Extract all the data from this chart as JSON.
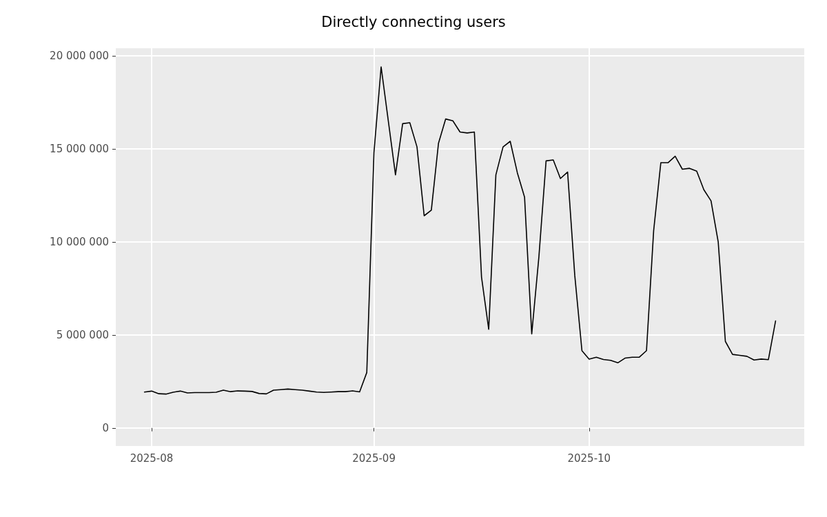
{
  "chart_data": {
    "type": "line",
    "title": "Directly connecting users",
    "x": [
      "2025-07-31",
      "2025-08-01",
      "2025-08-02",
      "2025-08-03",
      "2025-08-04",
      "2025-08-05",
      "2025-08-06",
      "2025-08-07",
      "2025-08-08",
      "2025-08-09",
      "2025-08-10",
      "2025-08-11",
      "2025-08-12",
      "2025-08-13",
      "2025-08-14",
      "2025-08-15",
      "2025-08-16",
      "2025-08-17",
      "2025-08-18",
      "2025-08-19",
      "2025-08-20",
      "2025-08-21",
      "2025-08-22",
      "2025-08-23",
      "2025-08-24",
      "2025-08-25",
      "2025-08-26",
      "2025-08-27",
      "2025-08-28",
      "2025-08-29",
      "2025-08-30",
      "2025-08-31",
      "2025-09-01",
      "2025-09-02",
      "2025-09-03",
      "2025-09-04",
      "2025-09-05",
      "2025-09-06",
      "2025-09-07",
      "2025-09-08",
      "2025-09-09",
      "2025-09-10",
      "2025-09-11",
      "2025-09-12",
      "2025-09-13",
      "2025-09-14",
      "2025-09-15",
      "2025-09-16",
      "2025-09-17",
      "2025-09-18",
      "2025-09-19",
      "2025-09-20",
      "2025-09-21",
      "2025-09-22",
      "2025-09-23",
      "2025-09-24",
      "2025-09-25",
      "2025-09-26",
      "2025-09-27",
      "2025-09-28",
      "2025-09-29",
      "2025-09-30",
      "2025-10-01",
      "2025-10-02",
      "2025-10-03",
      "2025-10-04",
      "2025-10-05",
      "2025-10-06",
      "2025-10-07",
      "2025-10-08",
      "2025-10-09",
      "2025-10-10",
      "2025-10-11",
      "2025-10-12",
      "2025-10-13",
      "2025-10-14",
      "2025-10-15",
      "2025-10-16",
      "2025-10-17",
      "2025-10-18",
      "2025-10-19",
      "2025-10-20",
      "2025-10-21",
      "2025-10-22",
      "2025-10-23",
      "2025-10-24",
      "2025-10-25",
      "2025-10-26",
      "2025-10-27"
    ],
    "series": [
      {
        "color": "#000000",
        "values": [
          1930000,
          1980000,
          1840000,
          1820000,
          1920000,
          1980000,
          1880000,
          1900000,
          1900000,
          1900000,
          1920000,
          2030000,
          1950000,
          1990000,
          1980000,
          1960000,
          1850000,
          1830000,
          2030000,
          2060000,
          2090000,
          2060000,
          2030000,
          1980000,
          1930000,
          1910000,
          1930000,
          1950000,
          1950000,
          1990000,
          1940000,
          2980000,
          14800000,
          19400000,
          16500000,
          13600000,
          16350000,
          16400000,
          15100000,
          11400000,
          11700000,
          15300000,
          16600000,
          16500000,
          15900000,
          15850000,
          15900000,
          8100000,
          5300000,
          13600000,
          15100000,
          15400000,
          13700000,
          12400000,
          5050000,
          9200000,
          14350000,
          14400000,
          13400000,
          13750000,
          8200000,
          4150000,
          3700000,
          3800000,
          3680000,
          3630000,
          3500000,
          3750000,
          3800000,
          3800000,
          4150000,
          10600000,
          14250000,
          14250000,
          14600000,
          13900000,
          13950000,
          13800000,
          12800000,
          12200000,
          10000000,
          4650000,
          3950000,
          3900000,
          3850000,
          3650000,
          3700000,
          3670000,
          5750000
        ]
      }
    ],
    "xlim": [
      "2025-07-27",
      "2025-10-31"
    ],
    "xticks": [
      {
        "value": "2025-08-01",
        "label": "2025-08"
      },
      {
        "value": "2025-09-01",
        "label": "2025-09"
      },
      {
        "value": "2025-10-01",
        "label": "2025-10"
      }
    ],
    "ylim": [
      -970000,
      20400000
    ],
    "yticks": [
      {
        "value": 0,
        "label": "0"
      },
      {
        "value": 5000000,
        "label": "5 000 000"
      },
      {
        "value": 10000000,
        "label": "10 000 000"
      },
      {
        "value": 15000000,
        "label": "15 000 000"
      },
      {
        "value": 20000000,
        "label": "20 000 000"
      }
    ],
    "grid": true,
    "marker": "none",
    "line_style": "solid"
  }
}
